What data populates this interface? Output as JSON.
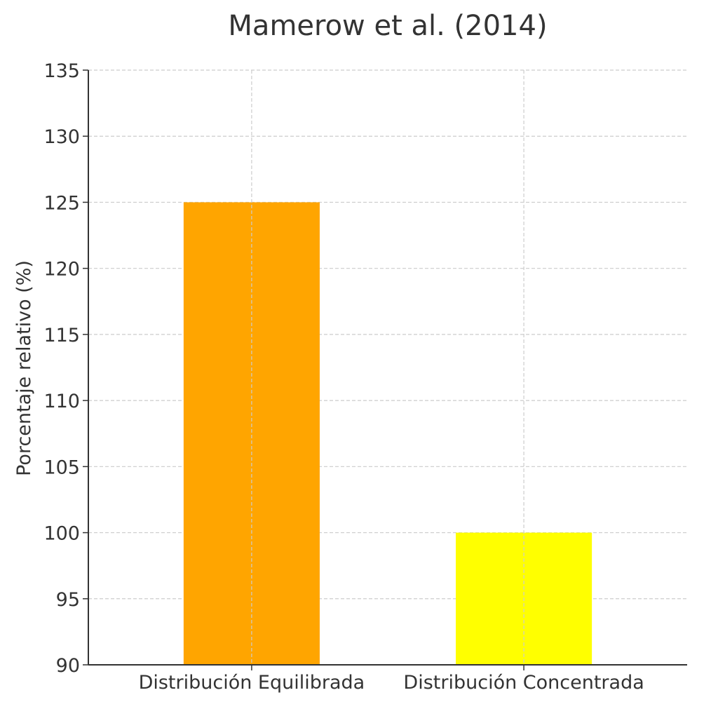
{
  "chart_data": {
    "type": "bar",
    "title": "Mamerow et al. (2014)",
    "xlabel": "",
    "ylabel": "Porcentaje relativo (%)",
    "categories": [
      "Distribución Equilibrada",
      "Distribución Concentrada"
    ],
    "values": [
      125,
      100
    ],
    "colors": [
      "#FFA500",
      "#FFFF00"
    ],
    "ylim": [
      90,
      135
    ],
    "yticks": [
      90,
      95,
      100,
      105,
      110,
      115,
      120,
      125,
      130,
      135
    ],
    "grid": true,
    "grid_color": "#cccccc",
    "legend": false
  }
}
